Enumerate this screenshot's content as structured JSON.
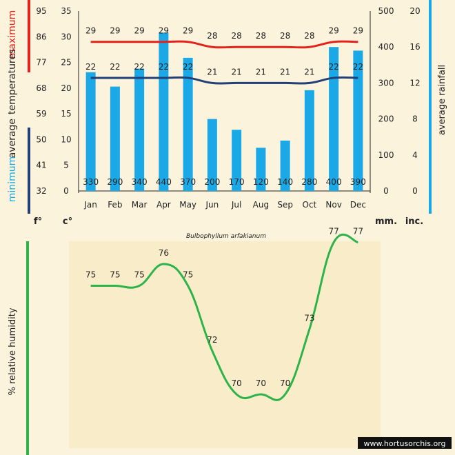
{
  "chart_data": [
    {
      "type": "bar+line",
      "title": "Bulbophyllum arfakianum",
      "categories": [
        "Jan",
        "Feb",
        "Mar",
        "Apr",
        "May",
        "Jun",
        "Jul",
        "Aug",
        "Sep",
        "Oct",
        "Nov",
        "Dec"
      ],
      "series": [
        {
          "name": "rainfall",
          "unit": "mm",
          "values": [
            330,
            290,
            340,
            440,
            370,
            200,
            170,
            120,
            140,
            280,
            400,
            390
          ]
        },
        {
          "name": "maximum",
          "unit": "c",
          "values": [
            29,
            29,
            29,
            29,
            29,
            28,
            28,
            28,
            28,
            28,
            29,
            29
          ]
        },
        {
          "name": "minimum",
          "unit": "c",
          "values": [
            22,
            22,
            22,
            22,
            22,
            21,
            21,
            21,
            21,
            21,
            22,
            22
          ]
        }
      ],
      "axes": {
        "fahrenheit": {
          "ticks": [
            95,
            86,
            77,
            68,
            59,
            50,
            41,
            32
          ],
          "label": "f°"
        },
        "celsius": {
          "ticks": [
            35,
            30,
            25,
            20,
            15,
            10,
            5,
            0
          ],
          "label": "c°",
          "ylim": [
            0,
            35
          ]
        },
        "rain_mm": {
          "ticks": [
            500,
            400,
            300,
            200,
            100,
            0
          ],
          "label": "mm.",
          "ylim": [
            0,
            500
          ]
        },
        "rain_inches": {
          "ticks": [
            20,
            16,
            12,
            8,
            4,
            0
          ],
          "label": "inc."
        }
      },
      "labels": {
        "max_label": "maximum",
        "avg_label": "average",
        "temps_label": "temperatures",
        "min_label": "minimum",
        "rain_label": "average rainfall"
      },
      "colors": {
        "max": "#e3231b",
        "min": "#223f78",
        "bar": "#1ba8e6",
        "humidity": "#2db34a"
      }
    },
    {
      "type": "line",
      "categories": [
        "Jan",
        "Feb",
        "Mar",
        "Apr",
        "May",
        "Jun",
        "Jul",
        "Aug",
        "Sep",
        "Oct",
        "Nov",
        "Dec"
      ],
      "series": [
        {
          "name": "relative humidity",
          "unit": "%",
          "values": [
            75,
            75,
            75,
            76,
            75,
            72,
            70,
            70,
            70,
            73,
            77,
            77
          ]
        }
      ],
      "ylabel": "%  relative humidity"
    }
  ],
  "watermark": "www.hortusorchis.org"
}
